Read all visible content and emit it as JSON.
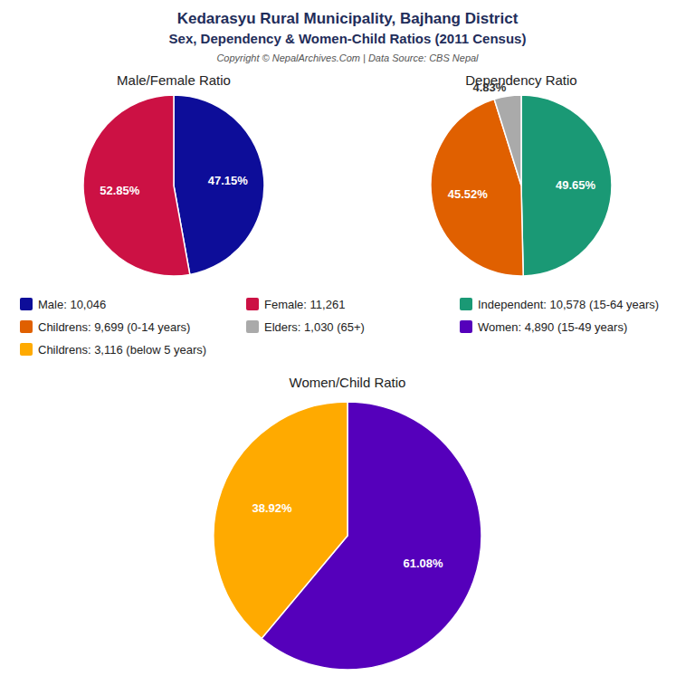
{
  "title": "Kedarasyu Rural Municipality, Bajhang District",
  "subtitle": "Sex, Dependency & Women-Child Ratios (2011 Census)",
  "annotations": [
    "Copyright © NepalArchives.Com | Data Source: CBS Nepal"
  ],
  "chart_data": [
    {
      "type": "pie",
      "title": "Male/Female Ratio",
      "categories": [
        "Male: 10,046",
        "Female: 11,261"
      ],
      "values": [
        47.15,
        52.85
      ],
      "value_labels": [
        "47.15%",
        "52.85%"
      ],
      "colors": [
        "#0d0d99",
        "#cc1144"
      ],
      "data_labels": true,
      "legend": "center"
    },
    {
      "type": "pie",
      "title": "Dependency Ratio",
      "categories": [
        "Independent: 10,578 (15-64 years)",
        "Childrens: 9,699 (0-14 years)",
        "Elders: 1,030 (65+)"
      ],
      "values": [
        49.65,
        45.52,
        4.83
      ],
      "value_labels": [
        "49.65%",
        "45.52%",
        "4.83%"
      ],
      "colors": [
        "#1a9975",
        "#e06000",
        "#aaaaaa"
      ],
      "data_labels": true,
      "legend": "center"
    },
    {
      "type": "pie",
      "title": "Women/Child Ratio",
      "categories": [
        "Women: 4,890 (15-49 years)",
        "Childrens: 3,116 (below 5 years)"
      ],
      "values": [
        61.08,
        38.92
      ],
      "value_labels": [
        "61.08%",
        "38.92%"
      ],
      "colors": [
        "#5500bb",
        "#ffaa00"
      ],
      "data_labels": true,
      "legend": "center"
    }
  ]
}
